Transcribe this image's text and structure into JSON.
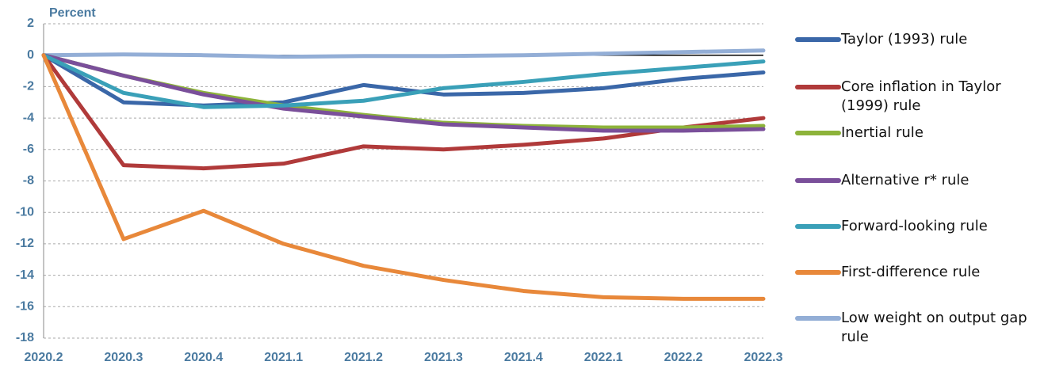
{
  "chart_data": {
    "type": "line",
    "ylabel": "Percent",
    "categories": [
      "2020.2",
      "2020.3",
      "2020.4",
      "2021.1",
      "2021.2",
      "2021.3",
      "2021.4",
      "2022.1",
      "2022.2",
      "2022.3"
    ],
    "ylim": [
      -18,
      2
    ],
    "yticks": [
      -18,
      -16,
      -14,
      -12,
      -10,
      -8,
      -6,
      -4,
      -2,
      0,
      2
    ],
    "grid": true,
    "series": [
      {
        "name": "Taylor (1993) rule",
        "color": "#3a67a8",
        "values": [
          0,
          -3.0,
          -3.2,
          -3.0,
          -1.9,
          -2.5,
          -2.4,
          -2.1,
          -1.5,
          -1.1
        ]
      },
      {
        "name": "Core inflation in Taylor (1999) rule",
        "color": "#b03a3a",
        "values": [
          0,
          -7.0,
          -7.2,
          -6.9,
          -5.8,
          -6.0,
          -5.7,
          -5.3,
          -4.6,
          -4.0
        ]
      },
      {
        "name": "Inertial rule",
        "color": "#8db33a",
        "values": [
          0,
          -1.3,
          -2.4,
          -3.2,
          -3.8,
          -4.3,
          -4.5,
          -4.6,
          -4.6,
          -4.5
        ]
      },
      {
        "name": "Alternative r* rule",
        "color": "#7a4f9a",
        "values": [
          0,
          -1.3,
          -2.5,
          -3.4,
          -3.9,
          -4.4,
          -4.6,
          -4.8,
          -4.8,
          -4.7
        ]
      },
      {
        "name": "Forward-looking rule",
        "color": "#3aa0b8",
        "values": [
          0,
          -2.4,
          -3.3,
          -3.2,
          -2.9,
          -2.1,
          -1.7,
          -1.2,
          -0.8,
          -0.4
        ]
      },
      {
        "name": "First-difference rule",
        "color": "#e8883a",
        "values": [
          0,
          -11.7,
          -9.9,
          -12.0,
          -13.4,
          -14.3,
          -15.0,
          -15.4,
          -15.5,
          -15.5
        ]
      },
      {
        "name": "Low weight on output gap rule",
        "color": "#93aed6",
        "values": [
          0,
          0.05,
          0.0,
          -0.1,
          -0.05,
          -0.05,
          0.0,
          0.1,
          0.2,
          0.3
        ]
      }
    ]
  }
}
